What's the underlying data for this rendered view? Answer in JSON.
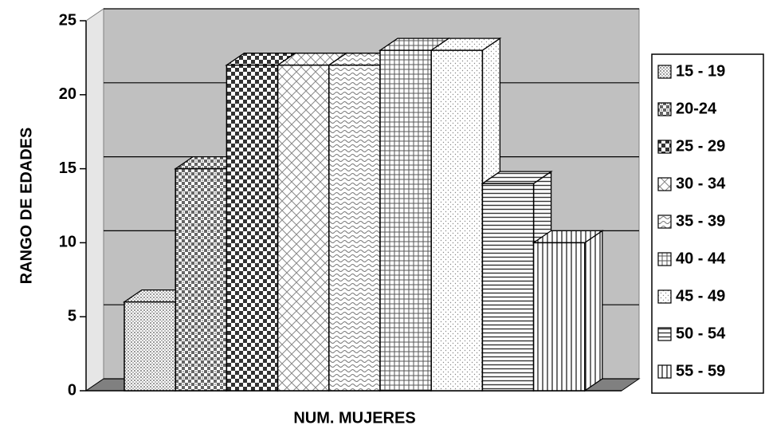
{
  "chart_data": {
    "type": "bar3d",
    "y_label": "RANGO DE EDADES",
    "x_label": "NUM. MUJERES",
    "ylim": [
      0,
      25
    ],
    "yticks": [
      0,
      5,
      10,
      15,
      20,
      25
    ],
    "grid": true,
    "legend": "right",
    "series": [
      {
        "name": "15 - 19",
        "values": [
          6
        ]
      },
      {
        "name": "20-24",
        "values": [
          15
        ]
      },
      {
        "name": "25 - 29",
        "values": [
          22
        ]
      },
      {
        "name": "30 - 34",
        "values": [
          22
        ]
      },
      {
        "name": "35 - 39",
        "values": [
          22
        ]
      },
      {
        "name": "40 - 44",
        "values": [
          23
        ]
      },
      {
        "name": "45 - 49",
        "values": [
          23
        ]
      },
      {
        "name": "50 - 54",
        "values": [
          14
        ]
      },
      {
        "name": "55 - 59",
        "values": [
          10
        ]
      }
    ]
  }
}
